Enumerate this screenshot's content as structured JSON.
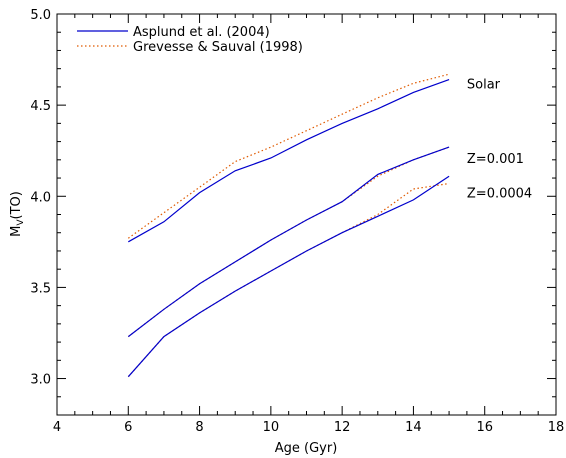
{
  "chart_data": {
    "type": "line",
    "xlabel": "Age (Gyr)",
    "ylabel": "M",
    "ylabel_sub": "V",
    "ylabel_suffix": "(TO)",
    "xlim": [
      4,
      18
    ],
    "ylim": [
      2.8,
      5.0
    ],
    "xticks": [
      4,
      6,
      8,
      10,
      12,
      14,
      16,
      18
    ],
    "xtick_labels": [
      "4",
      "6",
      "8",
      "10",
      "12",
      "14",
      "16",
      "18"
    ],
    "yticks": [
      3.0,
      3.5,
      4.0,
      4.5,
      5.0
    ],
    "ytick_labels": [
      "3.0",
      "3.5",
      "4.0",
      "4.5",
      "5.0"
    ],
    "legend": [
      {
        "label": "Asplund et al. (2004)",
        "color": "#0000cc",
        "style": "solid"
      },
      {
        "label": "Grevesse & Sauval (1998)",
        "color": "#e05a00",
        "style": "dotted"
      }
    ],
    "legend_position": "top-left",
    "x": [
      6,
      7,
      8,
      9,
      10,
      11,
      12,
      13,
      14,
      15
    ],
    "series": [
      {
        "group": "Solar",
        "model": "Asplund et al. (2004)",
        "values": [
          3.75,
          3.86,
          4.02,
          4.14,
          4.21,
          4.31,
          4.4,
          4.48,
          4.57,
          4.64
        ]
      },
      {
        "group": "Solar",
        "model": "Grevesse & Sauval (1998)",
        "values": [
          3.77,
          3.91,
          4.05,
          4.19,
          4.27,
          4.36,
          4.45,
          4.54,
          4.62,
          4.67
        ]
      },
      {
        "group": "Z=0.001",
        "model": "Asplund et al. (2004)",
        "values": [
          3.23,
          3.38,
          3.52,
          3.64,
          3.76,
          3.87,
          3.97,
          4.12,
          4.2,
          4.27
        ]
      },
      {
        "group": "Z=0.001",
        "model": "Grevesse & Sauval (1998)",
        "values": [
          3.23,
          3.38,
          3.52,
          3.64,
          3.76,
          3.87,
          3.97,
          4.11,
          4.2,
          4.27
        ]
      },
      {
        "group": "Z=0.0004",
        "model": "Asplund et al. (2004)",
        "values": [
          3.01,
          3.23,
          3.36,
          3.48,
          3.59,
          3.7,
          3.8,
          3.89,
          3.98,
          4.11
        ]
      },
      {
        "group": "Z=0.0004",
        "model": "Grevesse & Sauval (1998)",
        "values": [
          3.01,
          3.23,
          3.36,
          3.48,
          3.59,
          3.7,
          3.8,
          3.9,
          4.04,
          4.07
        ]
      }
    ],
    "annotations": [
      {
        "text": "Solar",
        "x": 15.5,
        "y": 4.62
      },
      {
        "text": "Z=0.001",
        "x": 15.5,
        "y": 4.21
      },
      {
        "text": "Z=0.0004",
        "x": 15.5,
        "y": 4.02
      }
    ],
    "grid": false
  }
}
